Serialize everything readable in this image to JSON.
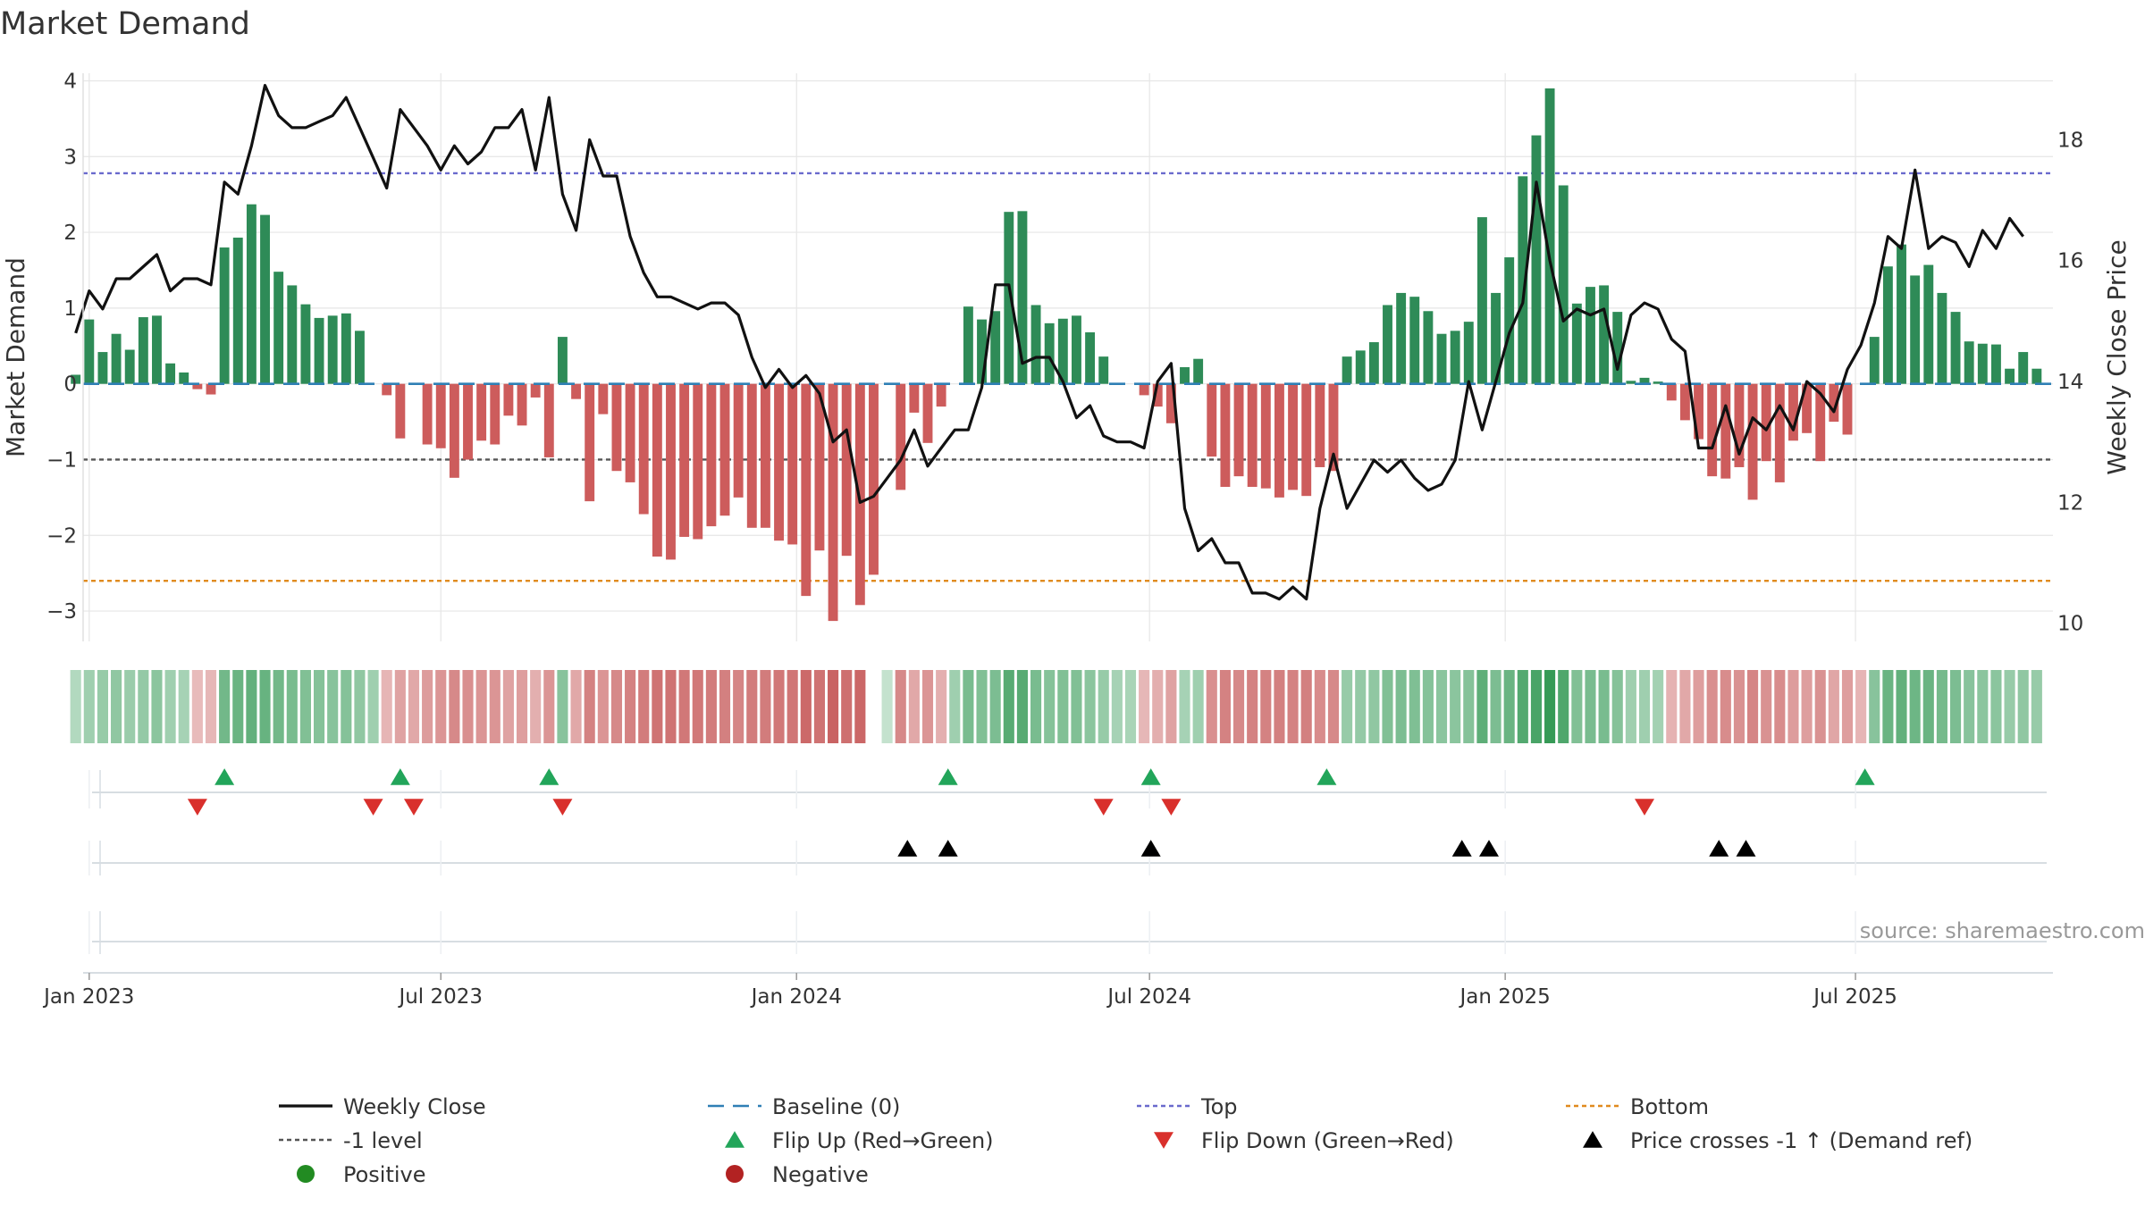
{
  "chart_data": {
    "type": "bar",
    "title": "Market Demand",
    "ylabel_left": "Market Demand",
    "ylabel_right": "Weekly Close Price",
    "source": "source: sharemaestro.com",
    "ylim_left": [
      -3.4,
      4.1
    ],
    "ylim_right": [
      9.7,
      19.1
    ],
    "yticks_left": [
      -3,
      -2,
      -1,
      0,
      1,
      2,
      3,
      4
    ],
    "yticks_left_labels": [
      "−3",
      "−2",
      "−1",
      "0",
      "1",
      "2",
      "3",
      "4"
    ],
    "yticks_right": [
      10,
      12,
      14,
      16,
      18
    ],
    "x_start_week": -0.45,
    "x_end_week": 145.2,
    "xticks": [
      {
        "week": 0,
        "label": "Jan 2023"
      },
      {
        "week": 26,
        "label": "Jul 2023"
      },
      {
        "week": 52.3,
        "label": "Jan 2024"
      },
      {
        "week": 78.4,
        "label": "Jul 2024"
      },
      {
        "week": 104.7,
        "label": "Jan 2025"
      },
      {
        "week": 130.6,
        "label": "Jul 2025"
      }
    ],
    "levels": {
      "baseline": 0,
      "top": 2.78,
      "minus_one": -1,
      "bottom": -2.6
    },
    "series": [
      {
        "name": "Market Demand",
        "start_week": -1,
        "values": [
          0.12,
          0.85,
          0.42,
          0.66,
          0.45,
          0.88,
          0.9,
          0.27,
          0.15,
          -0.07,
          -0.14,
          1.8,
          1.93,
          2.37,
          2.23,
          1.48,
          1.3,
          1.05,
          0.87,
          0.9,
          0.93,
          0.7,
          0.0,
          -0.15,
          -0.72,
          0.0,
          -0.8,
          -0.85,
          -1.24,
          -1.0,
          -0.75,
          -0.8,
          -0.42,
          -0.55,
          -0.18,
          -0.97,
          0.62,
          -0.2,
          -1.55,
          -0.4,
          -1.15,
          -1.3,
          -1.72,
          -2.28,
          -2.32,
          -2.02,
          -2.05,
          -1.88,
          -1.74,
          -1.5,
          -1.9,
          -1.9,
          -2.07,
          -2.12,
          -2.8,
          -2.2,
          -3.13,
          -2.27,
          -2.92,
          -2.52,
          0.0,
          -1.4,
          -0.38,
          -0.78,
          -0.3,
          0.0,
          1.02,
          0.85,
          0.96,
          2.27,
          2.28,
          1.04,
          0.8,
          0.86,
          0.9,
          0.68,
          0.36,
          0.0,
          0.0,
          -0.15,
          -0.3,
          -0.52,
          0.22,
          0.33,
          -0.96,
          -1.36,
          -1.22,
          -1.36,
          -1.38,
          -1.5,
          -1.4,
          -1.48,
          -1.1,
          -1.15,
          0.36,
          0.44,
          0.55,
          1.04,
          1.2,
          1.15,
          0.96,
          0.66,
          0.7,
          0.82,
          2.2,
          1.2,
          1.67,
          2.74,
          3.28,
          3.9,
          2.62,
          1.06,
          1.28,
          1.3,
          0.95,
          0.04,
          0.08,
          0.03,
          -0.22,
          -0.48,
          -0.73,
          -1.22,
          -1.25,
          -1.1,
          -1.53,
          -1.02,
          -1.3,
          -0.75,
          -0.65,
          -1.02,
          -0.5,
          -0.67,
          0.0,
          0.62,
          1.55,
          1.84,
          1.43,
          1.57,
          1.2,
          0.95,
          0.56,
          0.53,
          0.52,
          0.2,
          0.42,
          0.2
        ]
      },
      {
        "name": "Weekly Close",
        "start_week": -1,
        "values": [
          14.8,
          15.5,
          15.2,
          15.7,
          15.7,
          15.9,
          16.1,
          15.5,
          15.7,
          15.7,
          15.6,
          17.3,
          17.1,
          17.9,
          18.9,
          18.4,
          18.2,
          18.2,
          18.3,
          18.4,
          18.7,
          18.2,
          17.7,
          17.2,
          18.5,
          18.2,
          17.9,
          17.5,
          17.9,
          17.6,
          17.8,
          18.2,
          18.2,
          18.5,
          17.5,
          18.7,
          17.1,
          16.5,
          18.0,
          17.4,
          17.4,
          16.4,
          15.8,
          15.4,
          15.4,
          15.3,
          15.2,
          15.3,
          15.3,
          15.1,
          14.4,
          13.9,
          14.2,
          13.9,
          14.1,
          13.8,
          13.0,
          13.2,
          12.0,
          12.1,
          12.4,
          12.7,
          13.2,
          12.6,
          12.9,
          13.2,
          13.2,
          13.9,
          15.6,
          15.6,
          14.3,
          14.4,
          14.4,
          14.0,
          13.4,
          13.6,
          13.1,
          13.0,
          13.0,
          12.9,
          14.0,
          14.3,
          11.9,
          11.2,
          11.4,
          11.0,
          11.0,
          10.5,
          10.5,
          10.4,
          10.6,
          10.4,
          11.9,
          12.8,
          11.9,
          12.3,
          12.7,
          12.5,
          12.7,
          12.4,
          12.2,
          12.3,
          12.7,
          14.0,
          13.2,
          14.0,
          14.8,
          15.3,
          17.3,
          16.0,
          15.0,
          15.2,
          15.1,
          15.2,
          14.2,
          15.1,
          15.3,
          15.2,
          14.7,
          14.5,
          12.9,
          12.9,
          13.6,
          12.8,
          13.4,
          13.2,
          13.6,
          13.2,
          14.0,
          13.8,
          13.5,
          14.2,
          14.6,
          15.3,
          16.4,
          16.2,
          17.5,
          16.2,
          16.4,
          16.3,
          15.9,
          16.5,
          16.2,
          16.7,
          16.4
        ]
      }
    ],
    "strip": {
      "start_week": -1,
      "gaps": [
        59
      ],
      "values": [
        0.12,
        0.25,
        0.3,
        0.35,
        0.28,
        0.32,
        0.38,
        0.25,
        0.2,
        -0.15,
        -0.18,
        0.55,
        0.6,
        0.65,
        0.62,
        0.55,
        0.5,
        0.45,
        0.42,
        0.4,
        0.42,
        0.35,
        0.25,
        -0.2,
        -0.35,
        -0.3,
        -0.4,
        -0.45,
        -0.55,
        -0.5,
        -0.45,
        -0.45,
        -0.35,
        -0.38,
        -0.25,
        -0.45,
        0.4,
        -0.3,
        -0.6,
        -0.45,
        -0.55,
        -0.6,
        -0.65,
        -0.72,
        -0.72,
        -0.68,
        -0.68,
        -0.65,
        -0.62,
        -0.58,
        -0.65,
        -0.65,
        -0.68,
        -0.7,
        -0.8,
        -0.72,
        -0.85,
        -0.75,
        -0.82,
        -0.78,
        0.0,
        -0.55,
        -0.3,
        -0.45,
        -0.25,
        0.25,
        0.5,
        0.45,
        0.48,
        0.72,
        0.72,
        0.5,
        0.42,
        0.45,
        0.45,
        0.38,
        0.3,
        0.2,
        0.18,
        -0.18,
        -0.25,
        -0.35,
        0.2,
        0.25,
        -0.5,
        -0.6,
        -0.55,
        -0.6,
        -0.6,
        -0.62,
        -0.6,
        -0.62,
        -0.52,
        -0.55,
        0.3,
        0.32,
        0.35,
        0.45,
        0.48,
        0.46,
        0.42,
        0.38,
        0.38,
        0.42,
        0.68,
        0.48,
        0.6,
        0.75,
        0.82,
        0.95,
        0.78,
        0.45,
        0.5,
        0.5,
        0.42,
        0.25,
        0.25,
        0.22,
        -0.22,
        -0.3,
        -0.38,
        -0.5,
        -0.52,
        -0.48,
        -0.58,
        -0.48,
        -0.52,
        -0.4,
        -0.38,
        -0.48,
        -0.32,
        -0.38,
        -0.2,
        0.4,
        0.6,
        0.65,
        0.58,
        0.6,
        0.52,
        0.48,
        0.4,
        0.38,
        0.38,
        0.3,
        0.35,
        0.3
      ]
    },
    "flip_up_weeks": [
      10,
      23,
      34,
      63.5,
      78.5,
      91.5,
      131.3
    ],
    "flip_down_weeks": [
      8,
      21,
      24,
      35,
      75,
      80,
      115
    ],
    "price_cross_weeks": [
      60.5,
      63.5,
      78.5,
      101.5,
      103.5,
      120.5,
      122.5
    ],
    "legend": [
      {
        "key": "weekly-close",
        "label": "Weekly Close"
      },
      {
        "key": "baseline",
        "label": "Baseline (0)"
      },
      {
        "key": "top",
        "label": "Top"
      },
      {
        "key": "bottom",
        "label": "Bottom"
      },
      {
        "key": "minus-one",
        "label": "-1 level"
      },
      {
        "key": "flip-up",
        "label": "Flip Up (Red→Green)"
      },
      {
        "key": "flip-down",
        "label": "Flip Down (Green→Red)"
      },
      {
        "key": "price-cross",
        "label": "Price crosses -1 ↑ (Demand ref)"
      },
      {
        "key": "positive",
        "label": "Positive"
      },
      {
        "key": "negative",
        "label": "Negative"
      }
    ],
    "colors": {
      "positive_bar": "#2e8b57",
      "negative_bar": "#cd5c5c",
      "price_line": "#111111",
      "baseline": "#2f7fb5",
      "top": "#6a6acd",
      "minus_one": "#555555",
      "bottom": "#e08a1e",
      "flip_up": "#22a55a",
      "flip_down": "#d9302c",
      "price_cross": "#000000",
      "positive_dot": "#228b22",
      "negative_dot": "#b22222"
    }
  }
}
